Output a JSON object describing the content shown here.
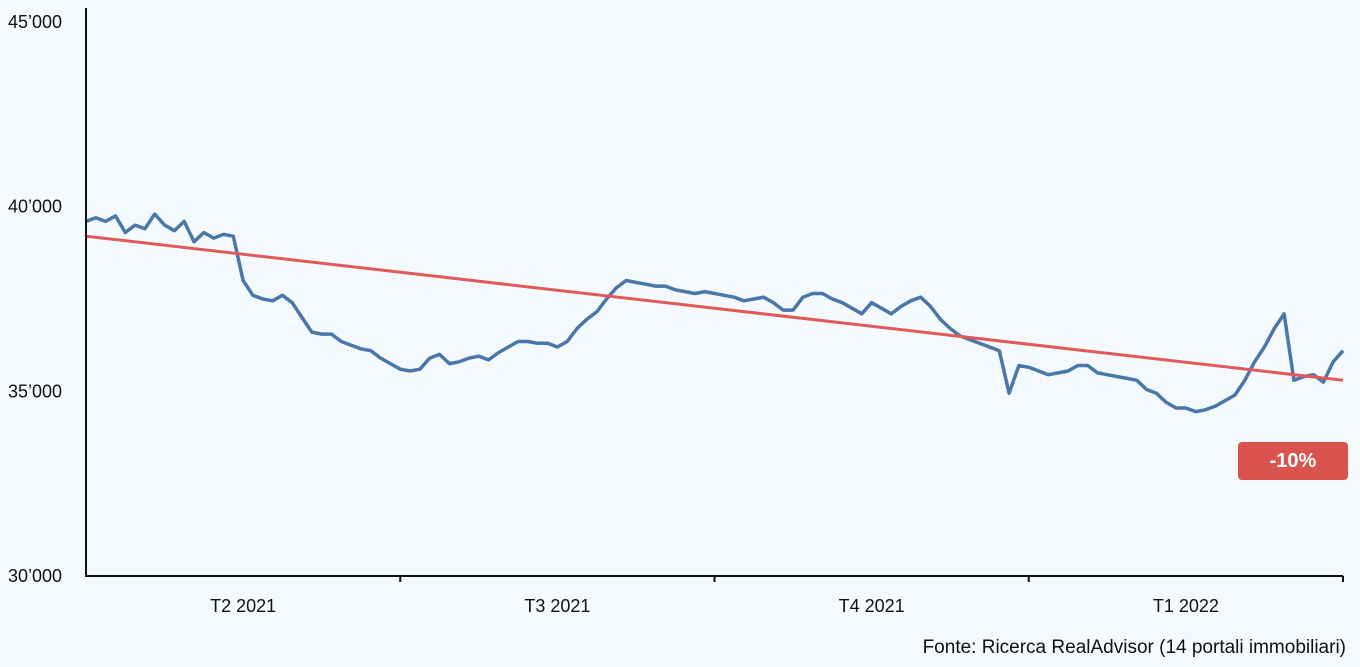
{
  "chart_data": {
    "type": "line",
    "y_ticks": [
      "45’000",
      "40’000",
      "35’000",
      "30’000"
    ],
    "y_tick_values": [
      45000,
      40000,
      35000,
      30000
    ],
    "ylim": [
      30000,
      45000
    ],
    "x_ticks": [
      "T2 2021",
      "T3 2021",
      "T4 2021",
      "T1 2022"
    ],
    "x_range": [
      "2021-03-01",
      "2022-03-20"
    ],
    "grid": false,
    "series": [
      {
        "color": "#4a76a8",
        "x": [
          "2021-03-01",
          "2021-03-04",
          "2021-03-07",
          "2021-03-10",
          "2021-03-13",
          "2021-03-16",
          "2021-03-19",
          "2021-03-22",
          "2021-03-25",
          "2021-03-28",
          "2021-03-31",
          "2021-04-03",
          "2021-04-06",
          "2021-04-09",
          "2021-04-12",
          "2021-04-15",
          "2021-04-18",
          "2021-04-21",
          "2021-04-24",
          "2021-04-27",
          "2021-04-30",
          "2021-05-03",
          "2021-05-06",
          "2021-05-09",
          "2021-05-12",
          "2021-05-15",
          "2021-05-18",
          "2021-05-21",
          "2021-05-24",
          "2021-05-27",
          "2021-05-30",
          "2021-06-02",
          "2021-06-05",
          "2021-06-08",
          "2021-06-11",
          "2021-06-14",
          "2021-06-17",
          "2021-06-20",
          "2021-06-23",
          "2021-06-26",
          "2021-06-29",
          "2021-07-02",
          "2021-07-05",
          "2021-07-08",
          "2021-07-11",
          "2021-07-14",
          "2021-07-17",
          "2021-07-20",
          "2021-07-23",
          "2021-07-26",
          "2021-07-29",
          "2021-08-01",
          "2021-08-04",
          "2021-08-07",
          "2021-08-10",
          "2021-08-13",
          "2021-08-16",
          "2021-08-19",
          "2021-08-22",
          "2021-08-25",
          "2021-08-28",
          "2021-08-31",
          "2021-09-03",
          "2021-09-06",
          "2021-09-09",
          "2021-09-12",
          "2021-09-15",
          "2021-09-18",
          "2021-09-21",
          "2021-09-24",
          "2021-09-27",
          "2021-09-30",
          "2021-10-03",
          "2021-10-06",
          "2021-10-09",
          "2021-10-12",
          "2021-10-15",
          "2021-10-18",
          "2021-10-21",
          "2021-10-24",
          "2021-10-27",
          "2021-10-30",
          "2021-11-02",
          "2021-11-05",
          "2021-11-08",
          "2021-11-11",
          "2021-11-14",
          "2021-11-17",
          "2021-11-20",
          "2021-11-23",
          "2021-11-26",
          "2021-11-29",
          "2021-12-02",
          "2021-12-05",
          "2021-12-08",
          "2021-12-11",
          "2021-12-14",
          "2021-12-17",
          "2021-12-20",
          "2021-12-23",
          "2021-12-26",
          "2021-12-29",
          "2022-01-01",
          "2022-01-04",
          "2022-01-07",
          "2022-01-10",
          "2022-01-13",
          "2022-01-16",
          "2022-01-19",
          "2022-01-22",
          "2022-01-25",
          "2022-01-28",
          "2022-01-31",
          "2022-02-03",
          "2022-02-06",
          "2022-02-09",
          "2022-02-12",
          "2022-02-15",
          "2022-02-18",
          "2022-02-21",
          "2022-02-24",
          "2022-02-27",
          "2022-03-02",
          "2022-03-05",
          "2022-03-08",
          "2022-03-11",
          "2022-03-14",
          "2022-03-17",
          "2022-03-20"
        ],
        "values": [
          39600,
          39700,
          39600,
          39750,
          39300,
          39500,
          39400,
          39800,
          39500,
          39350,
          39600,
          39050,
          39300,
          39150,
          39250,
          39200,
          38000,
          37600,
          37500,
          37450,
          37600,
          37400,
          37000,
          36600,
          36550,
          36550,
          36350,
          36250,
          36150,
          36100,
          35900,
          35750,
          35600,
          35550,
          35600,
          35900,
          36000,
          35750,
          35800,
          35900,
          35950,
          35850,
          36050,
          36200,
          36350,
          36350,
          36300,
          36300,
          36200,
          36350,
          36700,
          36950,
          37150,
          37500,
          37800,
          38000,
          37950,
          37900,
          37850,
          37850,
          37750,
          37700,
          37650,
          37700,
          37650,
          37600,
          37550,
          37450,
          37500,
          37550,
          37400,
          37200,
          37200,
          37550,
          37650,
          37650,
          37500,
          37400,
          37250,
          37100,
          37400,
          37250,
          37100,
          37300,
          37450,
          37550,
          37300,
          36950,
          36700,
          36500,
          36400,
          36300,
          36200,
          36100,
          34950,
          35700,
          35650,
          35550,
          35450,
          35500,
          35550,
          35700,
          35700,
          35500,
          35450,
          35400,
          35350,
          35300,
          35050,
          34950,
          34700,
          34550,
          34550,
          34450,
          34500,
          34600,
          34750,
          34900,
          35300,
          35800,
          36200,
          36700,
          37100,
          35300,
          35400,
          35450,
          35250,
          35800,
          36100
        ]
      },
      {
        "color": "#e05a5a",
        "x": [
          "2021-03-01",
          "2022-03-20"
        ],
        "values": [
          39200,
          35300
        ]
      }
    ]
  },
  "annotation": {
    "label": "-10%",
    "color": "#d9534f"
  },
  "source": "Fonte: Ricerca RealAdvisor (14 portali immobiliari)"
}
